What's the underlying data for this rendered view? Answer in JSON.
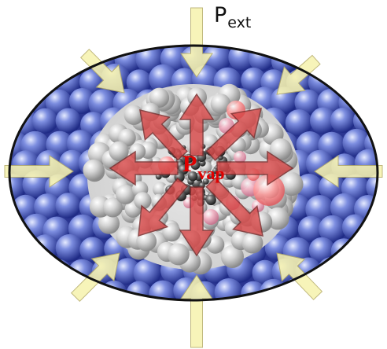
{
  "labels": {
    "p_ext": {
      "main": "P",
      "sub": "ext"
    },
    "p_vap": {
      "main": "P",
      "sub": "vap"
    }
  },
  "colors": {
    "outer_shell_molecules": "#3b4fb0",
    "inner_molecules": "#bfbfbf",
    "core_molecules": "#5a5a5a",
    "vapor_arrows": "#d84a4a",
    "external_arrows": "#f7f3b0",
    "vapor_label": "#e00000",
    "background": "#ffffff"
  },
  "icons": {
    "external_pressure_arrow": "arrow-inward-icon",
    "vapor_pressure_arrow": "arrow-outward-icon",
    "molecule": "sphere-icon"
  }
}
